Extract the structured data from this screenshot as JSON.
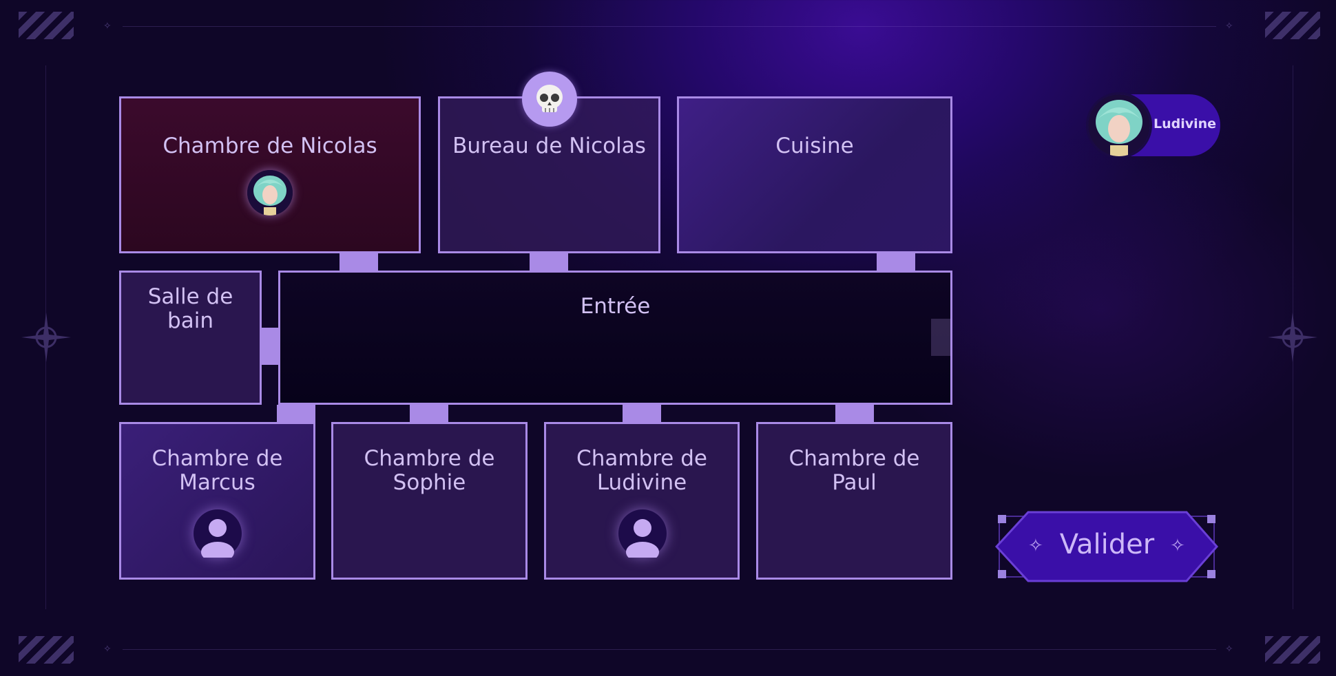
{
  "rooms": {
    "chambre_nicolas": "Chambre de Nicolas",
    "bureau_nicolas": "Bureau de Nicolas",
    "cuisine": "Cuisine",
    "salle_de_bain_line1": "Salle de",
    "salle_de_bain_line2": "bain",
    "entree": "Entrée",
    "marcus_line1": "Chambre de",
    "marcus_line2": "Marcus",
    "sophie_line1": "Chambre de",
    "sophie_line2": "Sophie",
    "ludivine_line1": "Chambre de",
    "ludivine_line2": "Ludivine",
    "paul_line1": "Chambre de",
    "paul_line2": "Paul"
  },
  "player": {
    "name": "Ludivine"
  },
  "actions": {
    "validate_label": "Valider"
  },
  "icons": {
    "skull": "skull-icon",
    "user_placeholder": "user-icon",
    "sparkle": "sparkle-icon"
  },
  "colors": {
    "room_border": "#a98ae6",
    "accent": "#3a0fa8",
    "active_room": "#3b0a2c",
    "text": "#d2c1f3"
  }
}
